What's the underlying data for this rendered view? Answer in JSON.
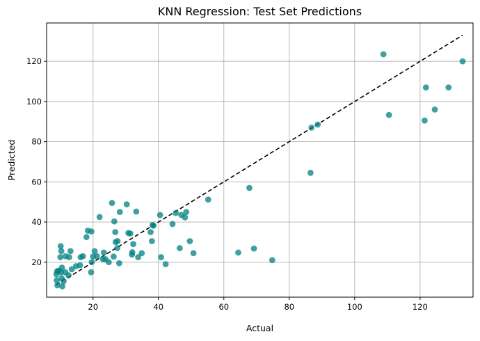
{
  "chart_data": {
    "type": "scatter",
    "title": "KNN Regression: Test Set Predictions",
    "xlabel": "Actual",
    "ylabel": "Predicted",
    "xlim": [
      5.8,
      136.2
    ],
    "ylim": [
      2.6,
      139.1
    ],
    "xticks": [
      20,
      40,
      60,
      80,
      100,
      120
    ],
    "yticks": [
      20,
      40,
      60,
      80,
      100,
      120
    ],
    "grid": true,
    "point_color": "#008080",
    "point_opacity": 0.75,
    "reference_line": {
      "style": "dashed",
      "color": "#000000",
      "from": [
        8.7,
        8.7
      ],
      "to": [
        133.0,
        133.0
      ]
    },
    "points": [
      [
        9.0,
        15.5
      ],
      [
        8.8,
        14.0
      ],
      [
        8.9,
        11.0
      ],
      [
        9.1,
        8.5
      ],
      [
        9.5,
        15.8
      ],
      [
        10.2,
        15.0
      ],
      [
        10.0,
        22.5
      ],
      [
        10.3,
        25.5
      ],
      [
        10.1,
        28.0
      ],
      [
        10.5,
        17.3
      ],
      [
        10.4,
        12.0
      ],
      [
        10.6,
        8.0
      ],
      [
        11.0,
        10.5
      ],
      [
        11.5,
        15.0
      ],
      [
        11.6,
        23.0
      ],
      [
        12.5,
        13.5
      ],
      [
        12.7,
        22.5
      ],
      [
        13.1,
        25.5
      ],
      [
        13.5,
        16.5
      ],
      [
        14.8,
        18.0
      ],
      [
        16.0,
        18.5
      ],
      [
        16.2,
        22.5
      ],
      [
        16.9,
        23.0
      ],
      [
        18.0,
        32.5
      ],
      [
        18.4,
        35.7
      ],
      [
        19.5,
        35.3
      ],
      [
        19.6,
        20.0
      ],
      [
        19.4,
        15.0
      ],
      [
        20.0,
        22.8
      ],
      [
        20.5,
        25.5
      ],
      [
        21.2,
        23.0
      ],
      [
        22.0,
        42.5
      ],
      [
        23.0,
        21.5
      ],
      [
        23.3,
        24.8
      ],
      [
        23.8,
        21.5
      ],
      [
        24.8,
        20.0
      ],
      [
        25.8,
        49.5
      ],
      [
        26.5,
        40.3
      ],
      [
        26.3,
        22.8
      ],
      [
        26.8,
        35.0
      ],
      [
        26.9,
        30.0
      ],
      [
        27.4,
        27.0
      ],
      [
        27.5,
        30.5
      ],
      [
        28.0,
        19.5
      ],
      [
        28.2,
        45.0
      ],
      [
        30.3,
        48.8
      ],
      [
        30.8,
        34.5
      ],
      [
        31.4,
        34.3
      ],
      [
        32.0,
        25.0
      ],
      [
        31.9,
        23.8
      ],
      [
        32.3,
        29.0
      ],
      [
        33.2,
        45.2
      ],
      [
        33.8,
        22.5
      ],
      [
        34.9,
        24.5
      ],
      [
        37.6,
        35.0
      ],
      [
        38.0,
        30.5
      ],
      [
        38.2,
        38.5
      ],
      [
        38.5,
        38.2
      ],
      [
        40.5,
        43.5
      ],
      [
        40.8,
        22.5
      ],
      [
        42.2,
        19.0
      ],
      [
        44.3,
        39.0
      ],
      [
        45.3,
        44.5
      ],
      [
        46.5,
        27.0
      ],
      [
        47.0,
        43.5
      ],
      [
        48.1,
        42.3
      ],
      [
        48.5,
        45.0
      ],
      [
        49.6,
        30.5
      ],
      [
        50.7,
        24.5
      ],
      [
        55.2,
        51.2
      ],
      [
        64.4,
        24.8
      ],
      [
        67.8,
        57.0
      ],
      [
        69.2,
        26.8
      ],
      [
        74.8,
        21.0
      ],
      [
        86.5,
        64.5
      ],
      [
        86.8,
        87.0
      ],
      [
        88.7,
        88.5
      ],
      [
        108.8,
        123.5
      ],
      [
        110.5,
        93.3
      ],
      [
        121.4,
        90.5
      ],
      [
        121.8,
        107.0
      ],
      [
        124.5,
        96.0
      ],
      [
        128.7,
        107.0
      ],
      [
        133.0,
        120.0
      ]
    ]
  }
}
